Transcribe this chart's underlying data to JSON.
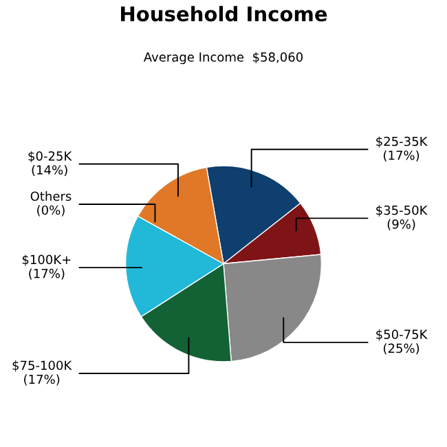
{
  "chart_data": {
    "type": "pie",
    "title": "Household Income",
    "subtitle": "Average Income  $58,060",
    "categories": [
      "$25-35K",
      "$35-50K",
      "$50-75K",
      "$75-100K",
      "$100K+",
      "Others",
      "$0-25K"
    ],
    "values": [
      17,
      9,
      25,
      17,
      17,
      0,
      14
    ],
    "value_labels": [
      "(17%)",
      "(9%)",
      "(25%)",
      "(17%)",
      "(17%)",
      "(0%)",
      "(14%)"
    ],
    "colors": [
      "#0e3f6e",
      "#7f1416",
      "#888888",
      "#136236",
      "#22b8d8",
      "#aaaaaa",
      "#e07828"
    ],
    "legend": false
  }
}
